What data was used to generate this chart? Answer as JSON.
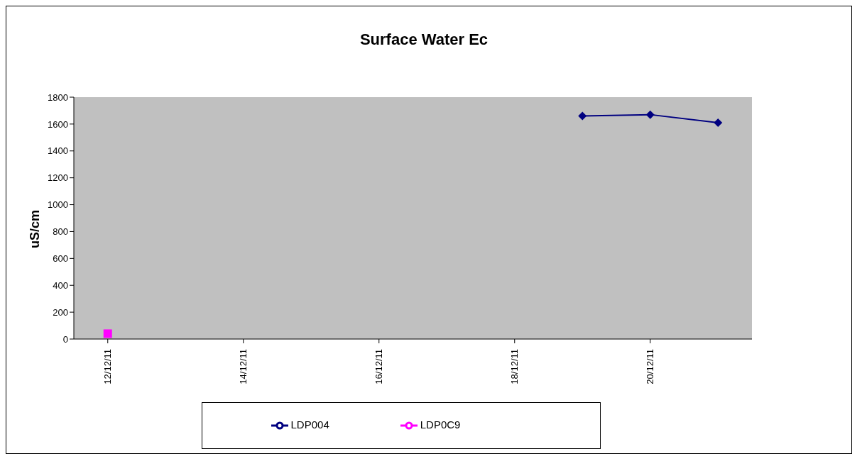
{
  "chart_data": {
    "type": "line",
    "title": "Surface Water Ec",
    "ylabel": "uS/cm",
    "xlim": [
      "--12-11T12:00",
      "--12-21T12:00"
    ],
    "xticks": [
      {
        "value": "--12-12",
        "label": "12/12/11"
      },
      {
        "value": "--12-14",
        "label": "14/12/11"
      },
      {
        "value": "--12-16",
        "label": "16/12/11"
      },
      {
        "value": "--12-18",
        "label": "18/12/11"
      },
      {
        "value": "--12-20",
        "label": "20/12/11"
      }
    ],
    "ylim": [
      0,
      1800
    ],
    "yticks": [
      0,
      200,
      400,
      600,
      800,
      1000,
      1200,
      1400,
      1600,
      1800
    ],
    "grid": false,
    "legend": "bottom",
    "series": [
      {
        "name": "LDP004",
        "color": "#000080",
        "marker": "diamond",
        "x": [
          "--12-19",
          "--12-20",
          "--12-21"
        ],
        "values": [
          1660,
          1670,
          1610
        ]
      },
      {
        "name": "LDP0C9",
        "color": "#ff00ff",
        "marker": "square",
        "x": [
          "--12-12"
        ],
        "values": [
          40
        ]
      }
    ]
  }
}
